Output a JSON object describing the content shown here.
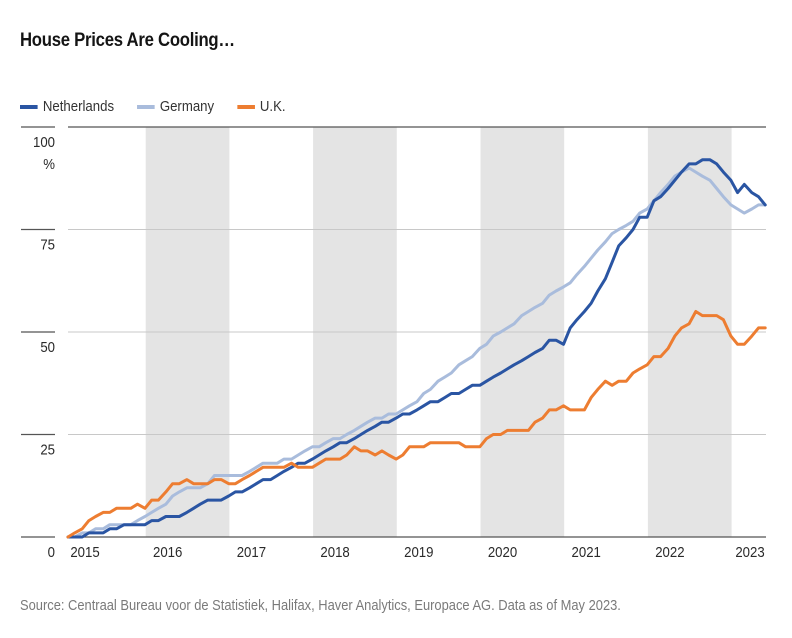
{
  "title": "House Prices Are Cooling…",
  "source": "Source: Centraal Bureau voor de Statistiek, Halifax, Haver Analytics, Europace AG. Data as of May 2023.",
  "legend": [
    {
      "name": "Netherlands",
      "color": "#2a55a3"
    },
    {
      "name": "Germany",
      "color": "#a9bcdc"
    },
    {
      "name": "U.K.",
      "color": "#ed7d31"
    }
  ],
  "chart_data": {
    "type": "line",
    "title": "House Prices Are Cooling…",
    "xlabel": "",
    "ylabel": "%",
    "y_unit_label": "%",
    "ylim": [
      0,
      100
    ],
    "xlim": [
      2015.0,
      2023.35
    ],
    "yticks": [
      0,
      25,
      50,
      75,
      100
    ],
    "ytick_labels": [
      "0",
      "25",
      "50",
      "75",
      "100"
    ],
    "xticks": [
      2015,
      2016,
      2017,
      2018,
      2019,
      2020,
      2021,
      2022,
      2023
    ],
    "xtick_labels": [
      "2015",
      "2016",
      "2017",
      "2018",
      "2019",
      "2020",
      "2021",
      "2022",
      "2023"
    ],
    "shaded_years": [
      2016,
      2018,
      2020,
      2022
    ],
    "grid": true,
    "legend_position": "top-left",
    "x": [
      2015.0,
      2015.08,
      2015.17,
      2015.25,
      2015.33,
      2015.42,
      2015.5,
      2015.58,
      2015.67,
      2015.75,
      2015.83,
      2015.92,
      2016.0,
      2016.08,
      2016.17,
      2016.25,
      2016.33,
      2016.42,
      2016.5,
      2016.58,
      2016.67,
      2016.75,
      2016.83,
      2016.92,
      2017.0,
      2017.08,
      2017.17,
      2017.25,
      2017.33,
      2017.42,
      2017.5,
      2017.58,
      2017.67,
      2017.75,
      2017.83,
      2017.92,
      2018.0,
      2018.08,
      2018.17,
      2018.25,
      2018.33,
      2018.42,
      2018.5,
      2018.58,
      2018.67,
      2018.75,
      2018.83,
      2018.92,
      2019.0,
      2019.08,
      2019.17,
      2019.25,
      2019.33,
      2019.42,
      2019.5,
      2019.58,
      2019.67,
      2019.75,
      2019.83,
      2019.92,
      2020.0,
      2020.08,
      2020.17,
      2020.25,
      2020.33,
      2020.42,
      2020.5,
      2020.58,
      2020.67,
      2020.75,
      2020.83,
      2020.92,
      2021.0,
      2021.08,
      2021.17,
      2021.25,
      2021.33,
      2021.42,
      2021.5,
      2021.58,
      2021.67,
      2021.75,
      2021.83,
      2021.92,
      2022.0,
      2022.08,
      2022.17,
      2022.25,
      2022.33,
      2022.42,
      2022.5,
      2022.58,
      2022.67,
      2022.75,
      2022.83,
      2022.92,
      2023.0,
      2023.08,
      2023.17,
      2023.25,
      2023.33
    ],
    "series": [
      {
        "name": "Netherlands",
        "color": "#2a55a3",
        "values": [
          0,
          0,
          0,
          1,
          1,
          1,
          2,
          2,
          3,
          3,
          3,
          3,
          4,
          4,
          5,
          5,
          5,
          6,
          7,
          8,
          9,
          9,
          9,
          10,
          11,
          11,
          12,
          13,
          14,
          14,
          15,
          16,
          17,
          18,
          18,
          19,
          20,
          21,
          22,
          23,
          23,
          24,
          25,
          26,
          27,
          28,
          28,
          29,
          30,
          30,
          31,
          32,
          33,
          33,
          34,
          35,
          35,
          36,
          37,
          37,
          38,
          39,
          40,
          41,
          42,
          43,
          44,
          45,
          46,
          48,
          48,
          47,
          51,
          53,
          55,
          57,
          60,
          63,
          67,
          71,
          73,
          75,
          78,
          78,
          82,
          83,
          85,
          87,
          89,
          91,
          91,
          92,
          92,
          91,
          89,
          87,
          84,
          86,
          84,
          83,
          81
        ]
      },
      {
        "name": "Germany",
        "color": "#a9bcdc",
        "values": [
          0,
          0,
          1,
          1,
          2,
          2,
          3,
          3,
          3,
          3,
          4,
          5,
          6,
          7,
          8,
          10,
          11,
          12,
          12,
          12,
          13,
          15,
          15,
          15,
          15,
          15,
          16,
          17,
          18,
          18,
          18,
          19,
          19,
          20,
          21,
          22,
          22,
          23,
          24,
          24,
          25,
          26,
          27,
          28,
          29,
          29,
          30,
          30,
          31,
          32,
          33,
          35,
          36,
          38,
          39,
          40,
          42,
          43,
          44,
          46,
          47,
          49,
          50,
          51,
          52,
          54,
          55,
          56,
          57,
          59,
          60,
          61,
          62,
          64,
          66,
          68,
          70,
          72,
          74,
          75,
          76,
          77,
          79,
          80,
          82,
          84,
          86,
          88,
          89,
          90,
          89,
          88,
          87,
          85,
          83,
          81,
          80,
          79,
          80,
          81,
          81
        ]
      },
      {
        "name": "U.K.",
        "color": "#ed7d31",
        "values": [
          0,
          1,
          2,
          4,
          5,
          6,
          6,
          7,
          7,
          7,
          8,
          7,
          9,
          9,
          11,
          13,
          13,
          14,
          13,
          13,
          13,
          14,
          14,
          13,
          13,
          14,
          15,
          16,
          17,
          17,
          17,
          17,
          18,
          17,
          17,
          17,
          18,
          19,
          19,
          19,
          20,
          22,
          21,
          21,
          20,
          21,
          20,
          19,
          20,
          22,
          22,
          22,
          23,
          23,
          23,
          23,
          23,
          22,
          22,
          22,
          24,
          25,
          25,
          26,
          26,
          26,
          26,
          28,
          29,
          31,
          31,
          32,
          31,
          31,
          31,
          34,
          36,
          38,
          37,
          38,
          38,
          40,
          41,
          42,
          44,
          44,
          46,
          49,
          51,
          52,
          55,
          54,
          54,
          54,
          53,
          49,
          47,
          47,
          49,
          51,
          51
        ]
      }
    ]
  }
}
